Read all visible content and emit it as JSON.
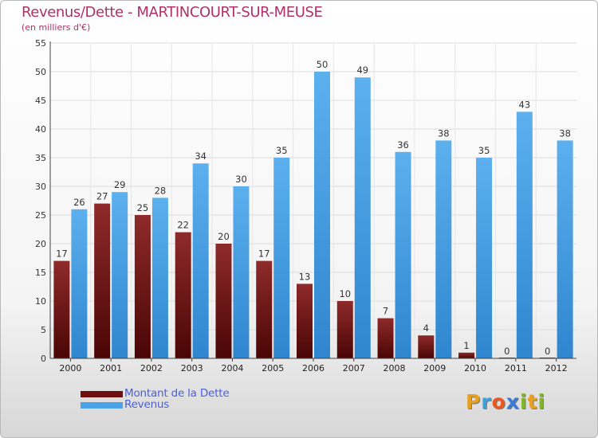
{
  "chart_data": {
    "type": "bar",
    "title": "Revenus/Dette - MARTINCOURT-SUR-MEUSE",
    "subtitle": "(en milliers d'€)",
    "categories": [
      "2000",
      "2001",
      "2002",
      "2003",
      "2004",
      "2005",
      "2006",
      "2007",
      "2008",
      "2009",
      "2010",
      "2011",
      "2012"
    ],
    "series": [
      {
        "name": "Montant de la Dette",
        "values": [
          17,
          27,
          25,
          22,
          20,
          17,
          13,
          10,
          7,
          4,
          1,
          0,
          0
        ],
        "color": "#6e1010"
      },
      {
        "name": "Revenus",
        "values": [
          26,
          29,
          28,
          34,
          30,
          35,
          50,
          49,
          36,
          38,
          35,
          43,
          38
        ],
        "color": "#4aa3e8"
      }
    ],
    "ylim": [
      0,
      55
    ],
    "yticks": [
      0,
      5,
      10,
      15,
      20,
      25,
      30,
      35,
      40,
      45,
      50,
      55
    ],
    "grid": true,
    "legend_position": "bottom-left"
  },
  "logo": {
    "letters": [
      "P",
      "r",
      "o",
      "x",
      "i",
      "t",
      "i"
    ],
    "colors": [
      "#e8a020",
      "#3fa0dc",
      "#e85a20",
      "#3a7ad8",
      "#80b828",
      "#e8a020",
      "#80b828"
    ]
  }
}
